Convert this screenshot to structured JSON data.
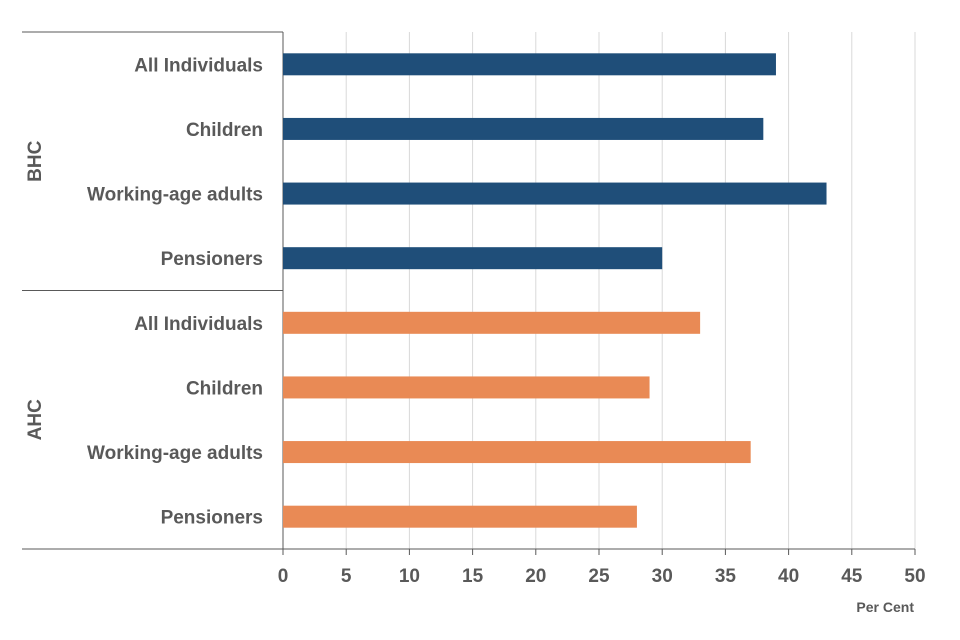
{
  "chart_data": {
    "type": "bar",
    "orientation": "horizontal",
    "xlabel": "Per Cent",
    "xlim": [
      0,
      50
    ],
    "xticks": [
      "0",
      "5",
      "10",
      "15",
      "20",
      "25",
      "30",
      "35",
      "40",
      "45",
      "50"
    ],
    "grid": "vertical",
    "groups": [
      {
        "name": "BHC",
        "color": "#1F4E79",
        "categories": [
          "All Individuals",
          "Children",
          "Working-age adults",
          "Pensioners"
        ],
        "values": [
          39,
          38,
          43,
          30
        ]
      },
      {
        "name": "AHC",
        "color": "#E98A55",
        "categories": [
          "All Individuals",
          "Children",
          "Working-age adults",
          "Pensioners"
        ],
        "values": [
          33,
          29,
          37,
          28
        ]
      }
    ]
  }
}
